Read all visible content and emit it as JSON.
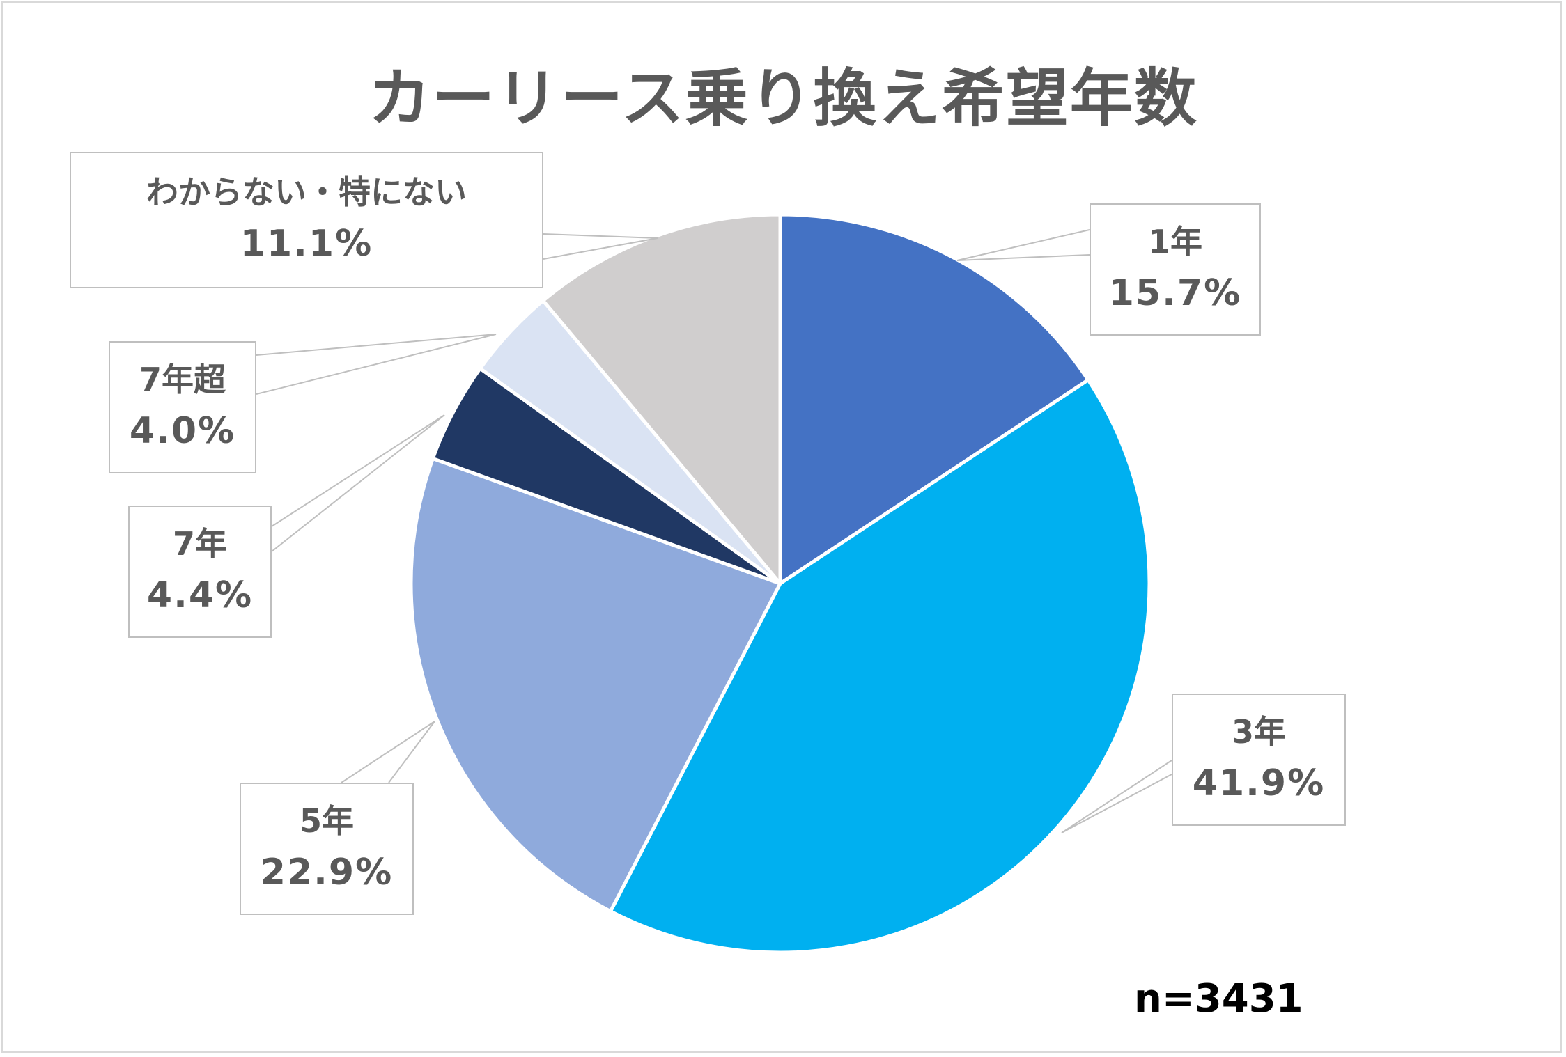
{
  "chart_data": {
    "type": "pie",
    "title": "カーリース乗り換え希望年数",
    "note": "n=3431",
    "slices": [
      {
        "label": "1年",
        "value": 15.7,
        "display": "15.7%",
        "color": "#4472c4"
      },
      {
        "label": "3年",
        "value": 41.9,
        "display": "41.9%",
        "color": "#00b0f0"
      },
      {
        "label": "5年",
        "value": 22.9,
        "display": "22.9%",
        "color": "#8faadc"
      },
      {
        "label": "7年",
        "value": 4.4,
        "display": "4.4%",
        "color": "#203864"
      },
      {
        "label": "7年超",
        "value": 4.0,
        "display": "4.0%",
        "color": "#dae3f3"
      },
      {
        "label": "わからない・特にない",
        "value": 11.1,
        "display": "11.1%",
        "color": "#d0cece"
      }
    ]
  }
}
